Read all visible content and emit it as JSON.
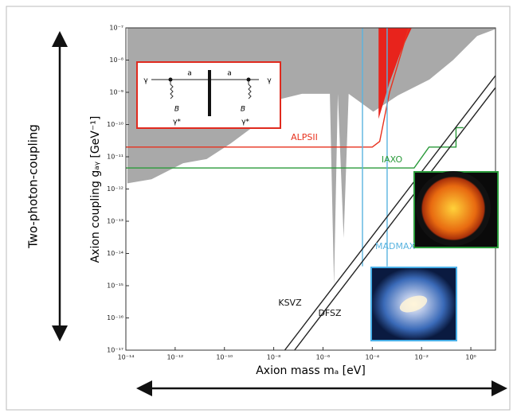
{
  "chart_data": {
    "type": "line",
    "side_label": "Two-photon-coupling",
    "ylabel": "Axion coupling gₐᵧ [GeV⁻¹]",
    "xlabel": "Axion mass mₐ [eV]",
    "xscale": "log",
    "yscale": "log",
    "xlim": [
      1e-14,
      10
    ],
    "ylim": [
      1e-17,
      1e-07
    ],
    "xticks": [
      {
        "value": 1e-14,
        "label": "10⁻¹⁴"
      },
      {
        "value": 1e-12,
        "label": "10⁻¹²"
      },
      {
        "value": 1e-10,
        "label": "10⁻¹⁰"
      },
      {
        "value": 1e-08,
        "label": "10⁻⁸"
      },
      {
        "value": 1e-06,
        "label": "10⁻⁶"
      },
      {
        "value": 0.0001,
        "label": "10⁻⁴"
      },
      {
        "value": 0.01,
        "label": "10⁻²"
      },
      {
        "value": 1,
        "label": "10⁰"
      }
    ],
    "yticks": [
      {
        "value": 1e-17,
        "label": "10⁻¹⁷"
      },
      {
        "value": 1e-16,
        "label": "10⁻¹⁶"
      },
      {
        "value": 1e-15,
        "label": "10⁻¹⁵"
      },
      {
        "value": 1e-14,
        "label": "10⁻¹⁴"
      },
      {
        "value": 1e-13,
        "label": "10⁻¹³"
      },
      {
        "value": 1e-12,
        "label": "10⁻¹²"
      },
      {
        "value": 1e-11,
        "label": "10⁻¹¹"
      },
      {
        "value": 1e-10,
        "label": "10⁻¹⁰"
      },
      {
        "value": 1e-09,
        "label": "10⁻⁹"
      },
      {
        "value": 1e-08,
        "label": "10⁻⁸"
      },
      {
        "value": 1e-07,
        "label": "10⁻⁷"
      }
    ],
    "series": [
      {
        "type": "area",
        "color": "#a9a9a9",
        "x": [
          1.15e-14,
          1.1e-13,
          2.1e-12,
          1.9e-11,
          1.8e-10,
          3.5e-09,
          1.6e-08,
          1.4e-07,
          1.9e-06,
          2.8e-06,
          4e-06,
          6.9e-06,
          1.1e-05,
          0.00011,
          0.0011,
          0.021,
          0.19,
          1.8,
          9.4
        ],
        "values": [
          1.5e-12,
          2e-12,
          6.3e-12,
          8.5e-12,
          2.6e-11,
          1.4e-10,
          6e-10,
          9e-10,
          9e-10,
          1e-15,
          9e-10,
          3e-14,
          9e-10,
          2.5e-10,
          8e-10,
          2.5e-09,
          1e-08,
          5.6e-08,
          9e-08
        ]
      },
      {
        "type": "area",
        "color": "#e8231c",
        "x": [
          0.00018,
          0.0005,
          0.0015,
          0.004
        ],
        "values": [
          1.5e-10,
          2e-09,
          2e-08,
          1e-07
        ]
      },
      {
        "type": "line",
        "color": "#e8321e",
        "x": [
          1e-14,
          0.0001,
          0.0002,
          0.0005,
          0.003
        ],
        "values": [
          2e-11,
          2e-11,
          3e-11,
          1e-09,
          1e-07
        ]
      },
      {
        "type": "line",
        "color": "#2a9a3a",
        "x": [
          1e-14,
          0.005,
          0.02,
          0.25,
          0.25,
          0.5
        ],
        "values": [
          4.5e-12,
          4.5e-12,
          2e-11,
          2e-11,
          8e-11,
          8e-11
        ]
      },
      {
        "type": "line",
        "color": "#5ab4e0",
        "x": [
          4e-05,
          4e-05,
          4e-05,
          0.0004,
          0.0004
        ],
        "values": [
          1e-07,
          4e-15,
          null,
          1e-07,
          4e-15
        ]
      },
      {
        "type": "line",
        "color": "#222222",
        "x": [
          2.8e-08,
          10
        ],
        "values": [
          1e-17,
          3.3e-09
        ]
      },
      {
        "type": "line",
        "color": "#222222",
        "x": [
          7e-08,
          10
        ],
        "values": [
          1e-17,
          1.4e-09
        ]
      }
    ],
    "annotations": [
      {
        "text": "ALPSII",
        "color": "#e8321e"
      },
      {
        "text": "IAXO",
        "color": "#2a9a3a"
      },
      {
        "text": "MADMAX",
        "color": "#5ab4e0"
      },
      {
        "text": "KSVZ",
        "color": "#111111"
      },
      {
        "text": "DFSZ",
        "color": "#111111"
      }
    ],
    "inset": {
      "labels": [
        "a",
        "a",
        "γ",
        "γ",
        "B",
        "B",
        "γ*",
        "γ*"
      ]
    }
  }
}
